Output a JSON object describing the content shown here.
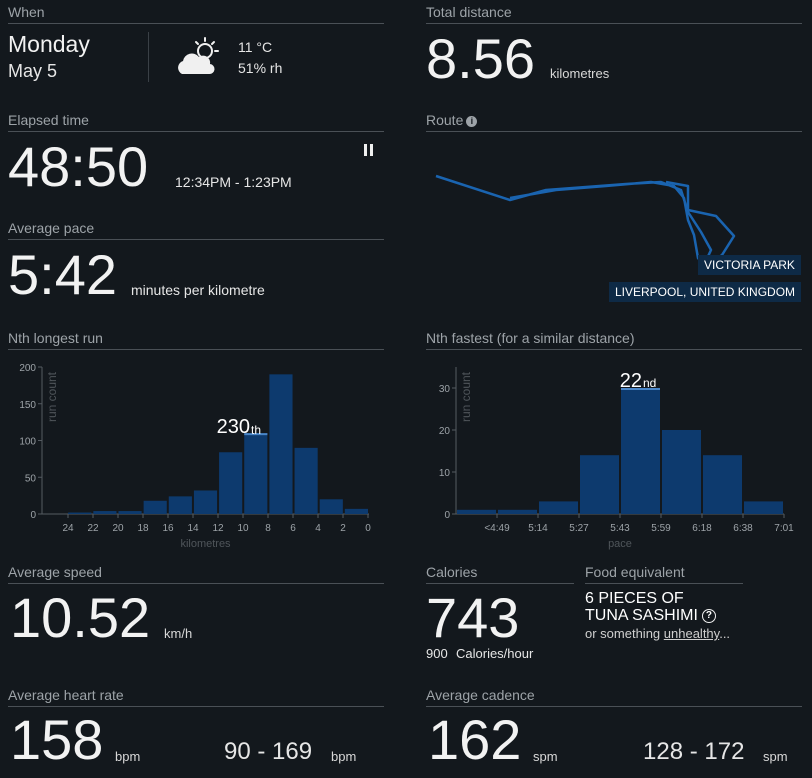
{
  "when": {
    "label": "When",
    "day": "Monday",
    "date": "May 5",
    "temperature": "11 °C",
    "humidity": "51% rh",
    "weather_icon": "partly-cloudy-icon"
  },
  "total_distance": {
    "label": "Total distance",
    "value": "8.56",
    "unit": "kilometres"
  },
  "elapsed_time": {
    "label": "Elapsed time",
    "value": "48:50",
    "range": "12:34PM - 1:23PM",
    "pause_icon": "pause-icon"
  },
  "route": {
    "label": "Route",
    "place": "VICTORIA PARK",
    "city": "LIVERPOOL, UNITED KINGDOM",
    "info_icon": "info-icon"
  },
  "average_pace": {
    "label": "Average pace",
    "value": "5:42",
    "unit": "minutes per kilometre"
  },
  "nth_longest": {
    "label": "Nth longest run",
    "rank": "230",
    "suffix": "th"
  },
  "nth_fastest": {
    "label": "Nth fastest (for a similar distance)",
    "rank": "22",
    "suffix": "nd"
  },
  "chart_data": [
    {
      "type": "bar",
      "title": "Nth longest run",
      "xlabel": "kilometres",
      "ylabel": "run count",
      "ylim": [
        0,
        200
      ],
      "yticks": [
        "200",
        "150",
        "100",
        "50",
        "0"
      ],
      "xticks": [
        "24",
        "22",
        "20",
        "18",
        "16",
        "14",
        "12",
        "10",
        "8",
        "6",
        "4",
        "2",
        "0"
      ],
      "values": [
        0,
        2,
        4,
        4,
        18,
        24,
        32,
        84,
        110,
        190,
        90,
        20,
        7
      ],
      "highlight_index": 8,
      "annotation": "230th"
    },
    {
      "type": "bar",
      "title": "Nth fastest (for a similar distance)",
      "xlabel": "pace",
      "ylabel": "run count",
      "ylim": [
        0,
        35
      ],
      "yticks": [
        "30",
        "20",
        "10",
        "0"
      ],
      "xticks": [
        "<4:49",
        "5:14",
        "5:27",
        "5:43",
        "5:59",
        "6:18",
        "6:38",
        "7:01"
      ],
      "values": [
        1,
        1,
        3,
        14,
        30,
        20,
        14,
        3
      ],
      "highlight_index": 4,
      "annotation": "22nd"
    }
  ],
  "average_speed": {
    "label": "Average speed",
    "value": "10.52",
    "unit": "km/h"
  },
  "calories": {
    "label": "Calories",
    "value": "743",
    "rate_value": "900",
    "rate_unit": "Calories/hour"
  },
  "food": {
    "label": "Food equivalent",
    "line1": "6 PIECES OF",
    "line2": "TUNA SASHIMI",
    "help_icon": "question-icon",
    "tail_prefix": "or something",
    "tail_link": "unhealthy",
    "tail_suffix": "..."
  },
  "average_hr": {
    "label": "Average heart rate",
    "value": "158",
    "unit": "bpm",
    "range": "90 - 169",
    "range_unit": "bpm"
  },
  "average_cadence": {
    "label": "Average cadence",
    "value": "162",
    "unit": "spm",
    "range": "128 - 172",
    "range_unit": "spm"
  },
  "colors": {
    "bar": "#0d3a6e",
    "bar_highlight": "#1f5a96",
    "route": "#1a64b0",
    "label_bg": "#0e2a46"
  }
}
